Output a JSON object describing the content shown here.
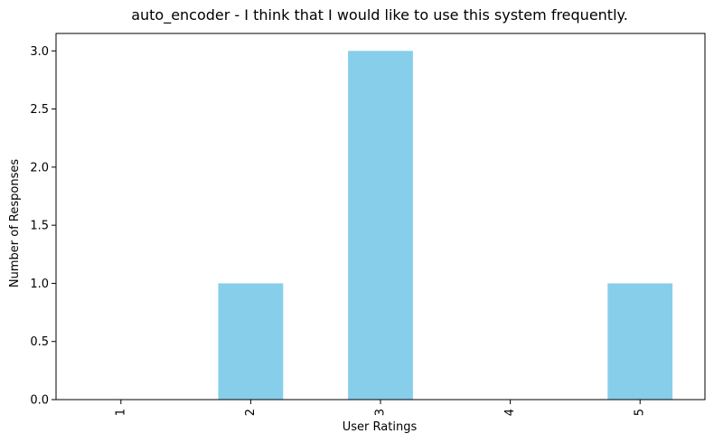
{
  "chart_data": {
    "type": "bar",
    "title": "auto_encoder - I think that I would like to use this system frequently.",
    "xlabel": "User Ratings",
    "ylabel": "Number of Responses",
    "categories": [
      "1",
      "2",
      "3",
      "4",
      "5"
    ],
    "values": [
      0,
      1,
      3,
      0,
      1
    ],
    "ylim": [
      0,
      3.15
    ],
    "yticks": [
      "0.0",
      "0.5",
      "1.0",
      "1.5",
      "2.0",
      "2.5",
      "3.0"
    ],
    "ytick_values": [
      0,
      0.5,
      1.0,
      1.5,
      2.0,
      2.5,
      3.0
    ],
    "grid": false,
    "bar_color": "#87CEEB",
    "xtick_rotation": "vertical"
  }
}
